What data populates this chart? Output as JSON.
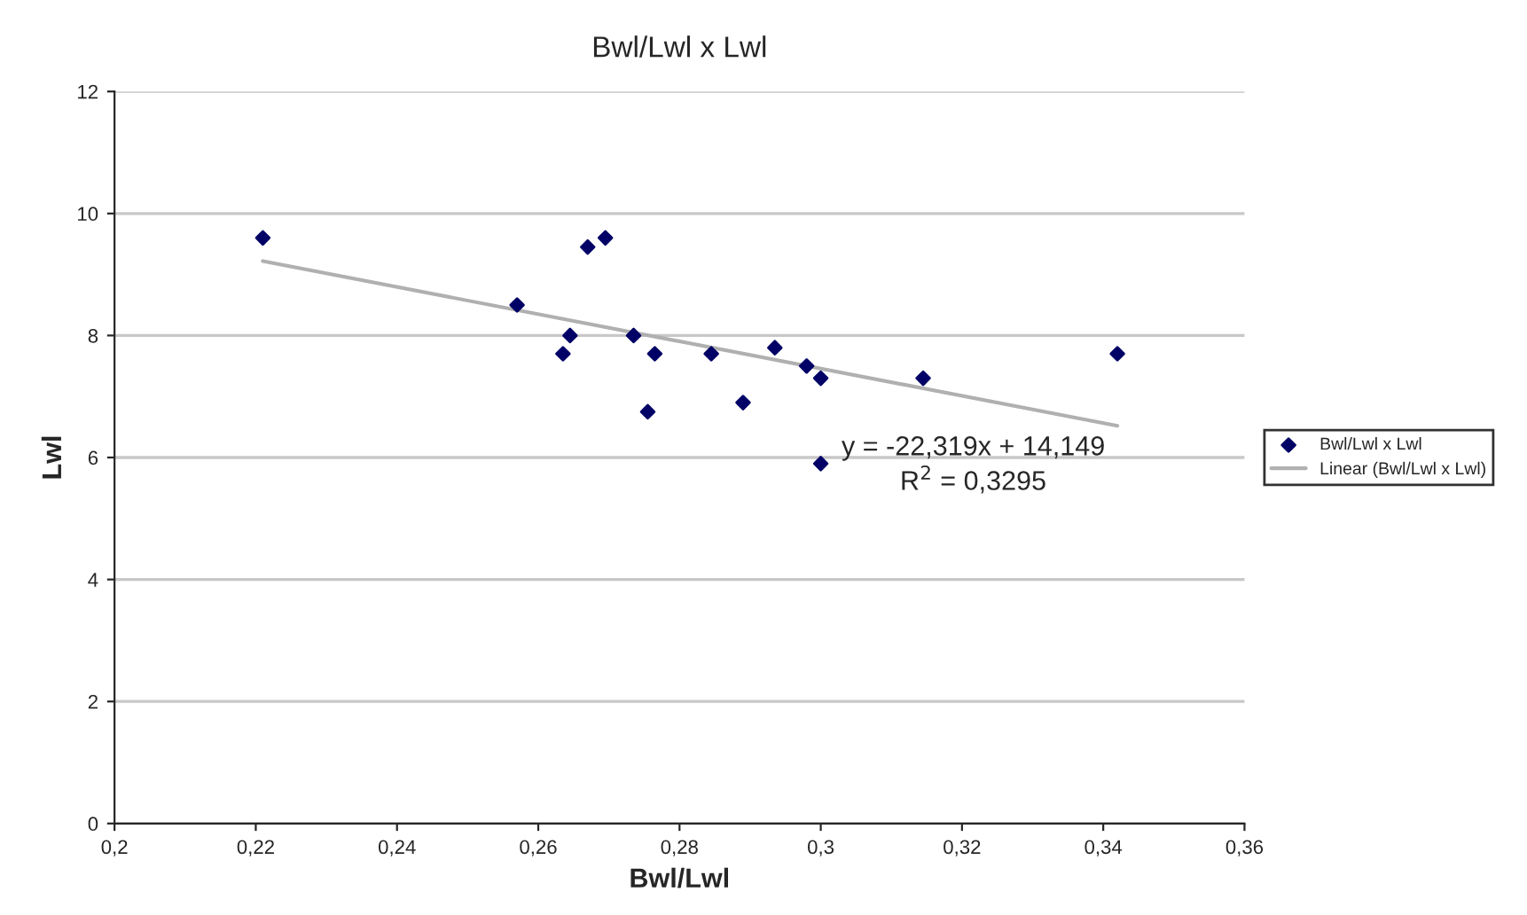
{
  "chart_data": {
    "type": "scatter",
    "title": "Bwl/Lwl x Lwl",
    "xlabel": "Bwl/Lwl",
    "ylabel": "Lwl",
    "series": [
      {
        "name": "Bwl/Lwl x Lwl",
        "color": "#000066",
        "marker": "diamond",
        "x": [
          0.221,
          0.257,
          0.2645,
          0.2635,
          0.267,
          0.2695,
          0.2735,
          0.2765,
          0.2755,
          0.2845,
          0.289,
          0.2935,
          0.298,
          0.3,
          0.3145,
          0.3,
          0.342
        ],
        "values": [
          9.6,
          8.5,
          8.0,
          7.7,
          9.45,
          9.6,
          8.0,
          7.7,
          6.75,
          7.7,
          6.9,
          7.8,
          7.5,
          7.3,
          7.3,
          5.9,
          7.7
        ]
      },
      {
        "name": "Linear (Bwl/Lwl x Lwl)",
        "type": "line",
        "color": "#b0b0b0",
        "x": [
          0.221,
          0.342
        ],
        "values": [
          9.22,
          6.52
        ]
      }
    ],
    "annotations": [
      "y = -22,319x + 14,149\nR$^{2}$ = 0,3295"
    ],
    "xlim": [
      0.2,
      0.36
    ],
    "xticks": [
      {
        "value": 0.2,
        "label": "0,2"
      },
      {
        "value": 0.22,
        "label": "0,22"
      },
      {
        "value": 0.24,
        "label": "0,24"
      },
      {
        "value": 0.26,
        "label": "0,26"
      },
      {
        "value": 0.28,
        "label": "0,28"
      },
      {
        "value": 0.3,
        "label": "0,3"
      },
      {
        "value": 0.32,
        "label": "0,32"
      },
      {
        "value": 0.34,
        "label": "0,34"
      },
      {
        "value": 0.36,
        "label": "0,36"
      }
    ],
    "ylim": [
      0,
      12
    ],
    "yticks": [
      0,
      2,
      4,
      6,
      8,
      10,
      12
    ],
    "grid": "y",
    "legend": "right"
  }
}
